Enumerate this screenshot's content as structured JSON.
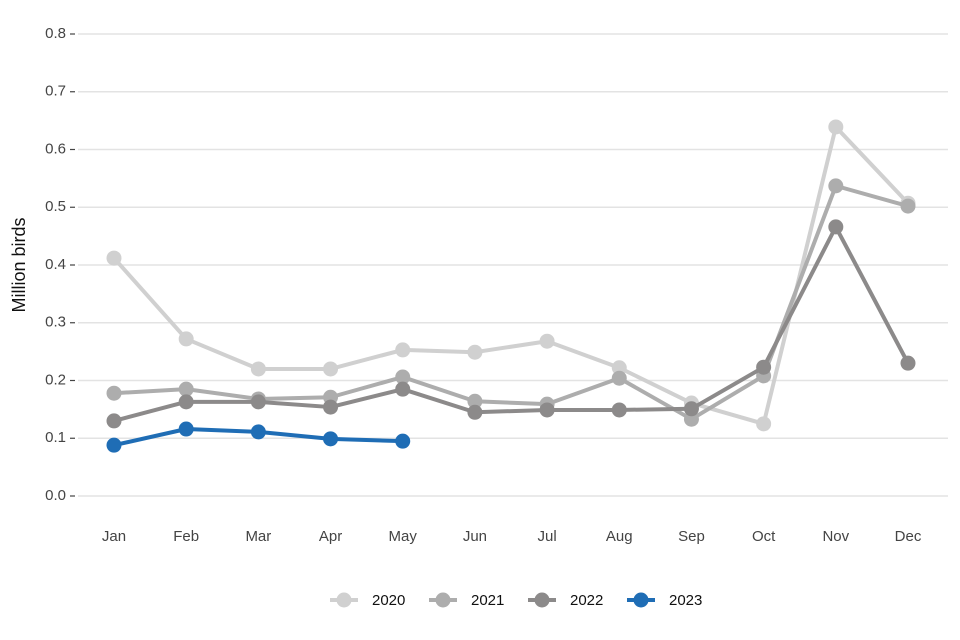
{
  "chart_data": {
    "type": "line",
    "ylabel": "Million birds",
    "categories": [
      "Jan",
      "Feb",
      "Mar",
      "Apr",
      "May",
      "Jun",
      "Jul",
      "Aug",
      "Sep",
      "Oct",
      "Nov",
      "Dec"
    ],
    "series": [
      {
        "name": "2020",
        "color": "#d0d0d0",
        "values": [
          0.412,
          0.272,
          0.22,
          0.22,
          0.253,
          0.249,
          0.268,
          0.222,
          0.161,
          0.125,
          0.639,
          0.507
        ]
      },
      {
        "name": "2021",
        "color": "#adadad",
        "values": [
          0.178,
          0.185,
          0.168,
          0.171,
          0.206,
          0.164,
          0.159,
          0.204,
          0.133,
          0.208,
          0.537,
          0.502
        ]
      },
      {
        "name": "2022",
        "color": "#8c8a8a",
        "values": [
          0.13,
          0.163,
          0.163,
          0.154,
          0.185,
          0.145,
          0.149,
          0.149,
          0.151,
          0.223,
          0.466,
          0.23
        ]
      },
      {
        "name": "2023",
        "color": "#1f6db5",
        "values": [
          0.088,
          0.116,
          0.111,
          0.099,
          0.095,
          null,
          null,
          null,
          null,
          null,
          null,
          null
        ]
      }
    ],
    "ylim": [
      0,
      0.8
    ],
    "yticks": [
      {
        "value": 0,
        "label": "0.0"
      },
      0.1,
      0.2,
      0.3,
      0.4,
      0.5,
      0.6,
      0.7,
      0.8
    ],
    "grid": true,
    "legend": "bottom"
  }
}
